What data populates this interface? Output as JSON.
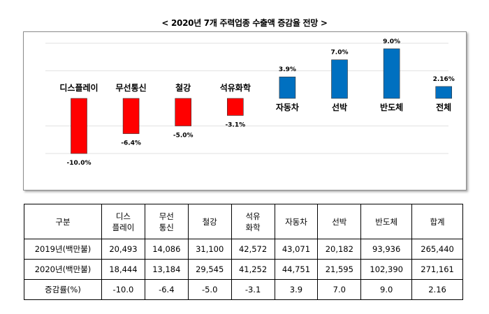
{
  "title": "< 2020년 7개 주력업종 수출액 증감율 전망 >",
  "colors": {
    "negative": "#ff0000",
    "positive": "#0070c0",
    "gridline": "#e2e2e2"
  },
  "chart_data": {
    "type": "bar",
    "title": "< 2020년 7개 주력업종 수출액 증감율 전망 >",
    "categories": [
      "디스플레이",
      "무선통신",
      "철강",
      "석유화학",
      "자동차",
      "선박",
      "반도체",
      "전체"
    ],
    "values": [
      -10.0,
      -6.4,
      -5.0,
      -3.1,
      3.9,
      7.0,
      9.0,
      2.16
    ],
    "value_labels": [
      "-10.0%",
      "-6.4%",
      "-5.0%",
      "-3.1%",
      "3.9%",
      "7.0%",
      "9.0%",
      "2.16%"
    ],
    "xlabel": "",
    "ylabel": "",
    "ylim": [
      -12,
      10
    ],
    "grid": true
  },
  "table": {
    "headers": [
      "구분",
      "디스\n플레이",
      "무선\n통신",
      "철강",
      "석유\n화학",
      "자동차",
      "선박",
      "반도체",
      "합계"
    ],
    "rows": [
      [
        "2019년(백만불)",
        "20,493",
        "14,086",
        "31,100",
        "42,572",
        "43,071",
        "20,182",
        "93,936",
        "265,440"
      ],
      [
        "2020년(백만불)",
        "18,444",
        "13,184",
        "29,545",
        "41,252",
        "44,751",
        "21,595",
        "102,390",
        "271,161"
      ],
      [
        "증감률(%)",
        "-10.0",
        "-6.4",
        "-5.0",
        "-3.1",
        "3.9",
        "7.0",
        "9.0",
        "2.16"
      ]
    ]
  }
}
